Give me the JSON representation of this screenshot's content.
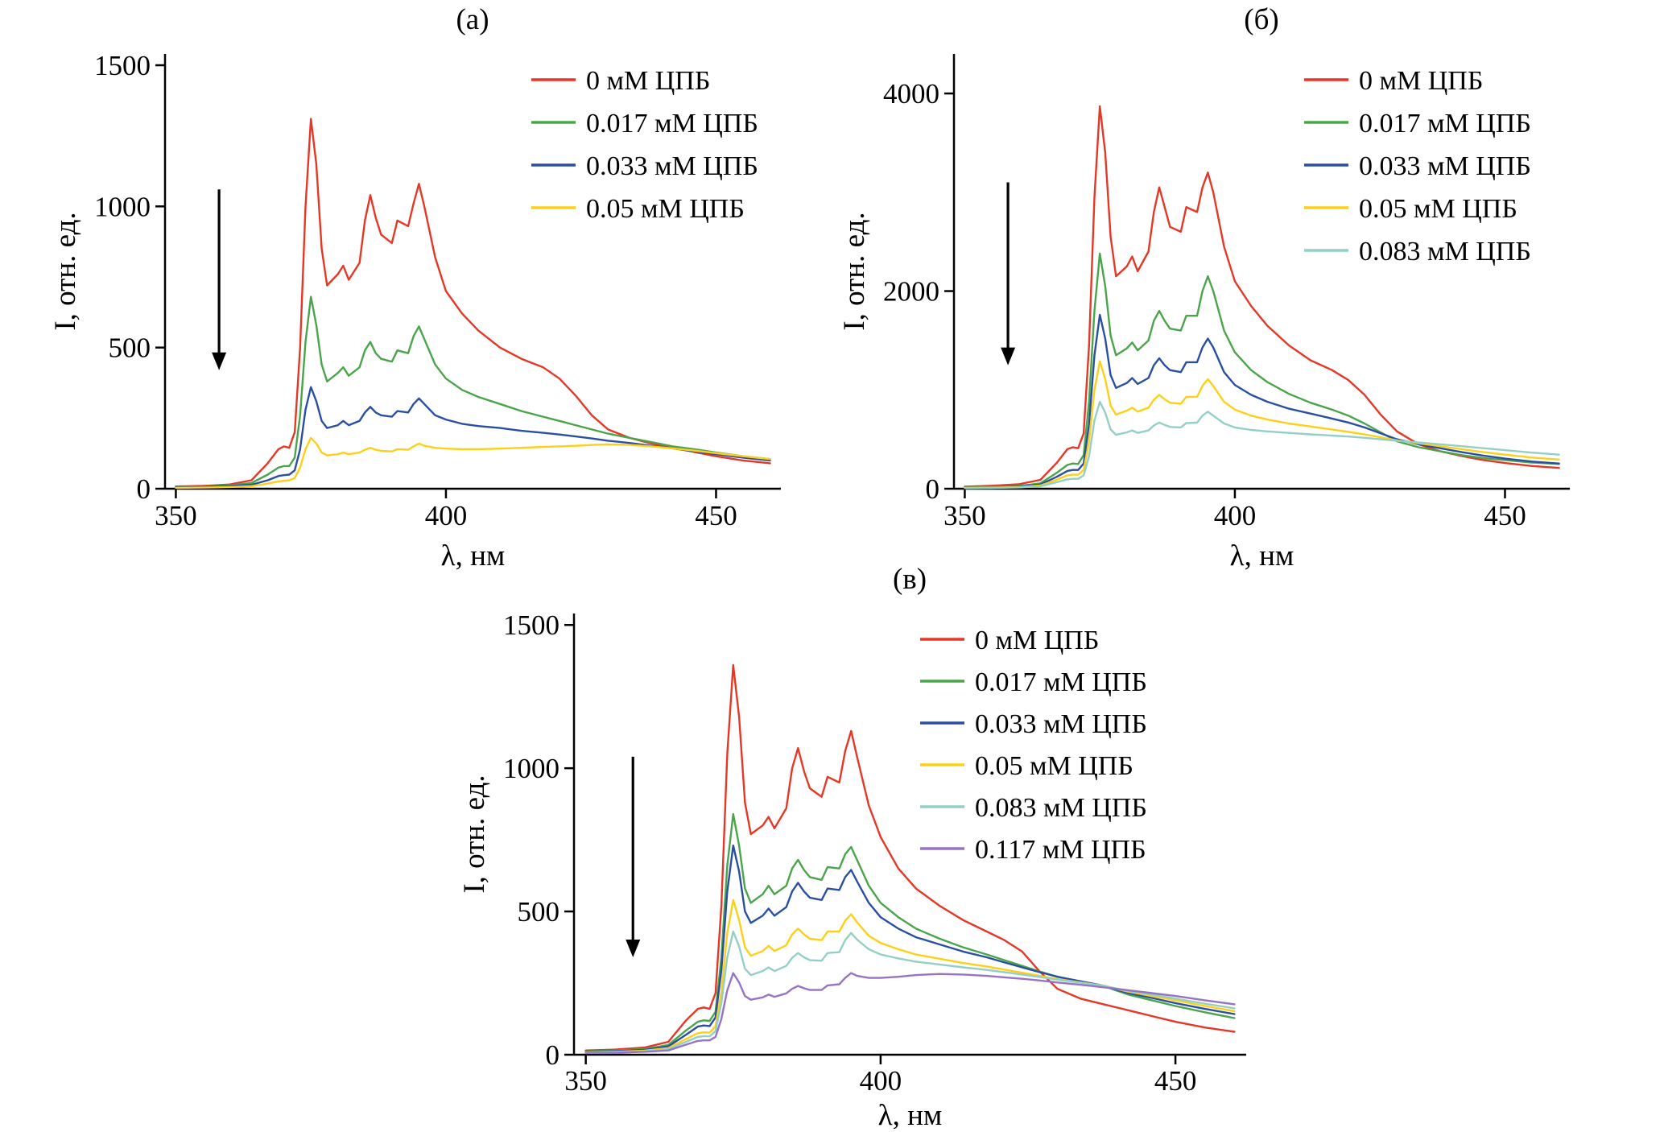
{
  "chart_data": [
    {
      "type": "line",
      "title": "(а)",
      "xlabel": "λ, нм",
      "ylabel": "I, отн. ед.",
      "xlim": [
        348,
        462
      ],
      "ylim": [
        0,
        1540
      ],
      "xticks": [
        350,
        400,
        450
      ],
      "yticks": [
        0,
        500,
        1000,
        1500
      ],
      "grid": false,
      "legend_position": "top-right",
      "arrow": {
        "x": 358,
        "y_from": 1060,
        "y_to": 420
      },
      "x": [
        350,
        355,
        360,
        364,
        367,
        369,
        370,
        371,
        372,
        373,
        374,
        375,
        376,
        377,
        378,
        380,
        381,
        382,
        384,
        385,
        386,
        387,
        388,
        390,
        391,
        393,
        394,
        395,
        396,
        398,
        400,
        403,
        406,
        410,
        414,
        418,
        421,
        424,
        427,
        430,
        434,
        438,
        442,
        446,
        450,
        455,
        460
      ],
      "series": [
        {
          "name": "0 мМ ЦПБ",
          "color": "#e63726",
          "values": [
            8,
            10,
            15,
            30,
            90,
            140,
            150,
            145,
            200,
            500,
            1000,
            1310,
            1150,
            850,
            720,
            760,
            790,
            740,
            800,
            950,
            1040,
            960,
            900,
            870,
            950,
            930,
            1010,
            1080,
            1000,
            820,
            700,
            620,
            560,
            500,
            460,
            430,
            390,
            330,
            260,
            210,
            180,
            160,
            145,
            130,
            115,
            100,
            90
          ]
        },
        {
          "name": "0.017 мМ ЦПБ",
          "color": "#4aa54a",
          "values": [
            5,
            8,
            12,
            20,
            50,
            75,
            80,
            80,
            110,
            260,
            520,
            680,
            580,
            440,
            380,
            410,
            430,
            400,
            430,
            490,
            520,
            480,
            460,
            450,
            490,
            480,
            540,
            575,
            530,
            440,
            390,
            350,
            325,
            300,
            275,
            255,
            240,
            225,
            210,
            195,
            180,
            165,
            150,
            140,
            128,
            115,
            105
          ]
        },
        {
          "name": "0.033 мМ ЦПБ",
          "color": "#2a4fa2",
          "values": [
            4,
            6,
            9,
            14,
            30,
            45,
            48,
            50,
            65,
            140,
            280,
            360,
            310,
            240,
            215,
            225,
            240,
            225,
            240,
            270,
            290,
            270,
            260,
            255,
            275,
            270,
            300,
            320,
            300,
            260,
            245,
            230,
            222,
            215,
            205,
            198,
            192,
            185,
            178,
            170,
            162,
            152,
            143,
            132,
            122,
            110,
            100
          ]
        },
        {
          "name": "0.05 мМ ЦПБ",
          "color": "#fdd017",
          "values": [
            3,
            4,
            6,
            9,
            18,
            26,
            28,
            30,
            38,
            75,
            140,
            180,
            160,
            128,
            118,
            122,
            128,
            122,
            128,
            138,
            145,
            138,
            134,
            132,
            140,
            138,
            150,
            160,
            152,
            145,
            142,
            140,
            140,
            142,
            145,
            148,
            150,
            152,
            155,
            157,
            155,
            150,
            143,
            135,
            126,
            115,
            105
          ]
        }
      ]
    },
    {
      "type": "line",
      "title": "(б)",
      "xlabel": "λ, нм",
      "ylabel": "I, отн. ед.",
      "xlim": [
        348,
        462
      ],
      "ylim": [
        0,
        4400
      ],
      "xticks": [
        350,
        400,
        450
      ],
      "yticks": [
        0,
        2000,
        4000
      ],
      "grid": false,
      "legend_position": "top-right",
      "arrow": {
        "x": 358,
        "y_from": 3100,
        "y_to": 1250
      },
      "x": [
        350,
        355,
        360,
        364,
        367,
        369,
        370,
        371,
        372,
        373,
        374,
        375,
        376,
        377,
        378,
        380,
        381,
        382,
        384,
        385,
        386,
        387,
        388,
        390,
        391,
        393,
        394,
        395,
        396,
        398,
        400,
        403,
        406,
        410,
        414,
        418,
        421,
        424,
        427,
        430,
        434,
        438,
        442,
        446,
        450,
        455,
        460
      ],
      "series": [
        {
          "name": "0 мМ ЦПБ",
          "color": "#e63726",
          "values": [
            20,
            30,
            45,
            90,
            260,
            400,
            420,
            410,
            560,
            1450,
            2950,
            3870,
            3400,
            2550,
            2150,
            2250,
            2350,
            2200,
            2400,
            2800,
            3050,
            2850,
            2650,
            2600,
            2850,
            2800,
            3050,
            3200,
            3000,
            2450,
            2100,
            1850,
            1650,
            1450,
            1300,
            1200,
            1100,
            950,
            750,
            580,
            450,
            380,
            330,
            290,
            260,
            230,
            210
          ]
        },
        {
          "name": "0.017 мМ ЦПБ",
          "color": "#4aa54a",
          "values": [
            12,
            18,
            28,
            55,
            160,
            240,
            255,
            250,
            340,
            880,
            1800,
            2380,
            2050,
            1550,
            1350,
            1420,
            1480,
            1400,
            1500,
            1700,
            1800,
            1700,
            1620,
            1600,
            1750,
            1750,
            2000,
            2150,
            2000,
            1600,
            1380,
            1200,
            1080,
            960,
            870,
            800,
            740,
            660,
            570,
            480,
            420,
            380,
            340,
            310,
            290,
            265,
            250
          ]
        },
        {
          "name": "0.033 мМ ЦПБ",
          "color": "#2a4fa2",
          "values": [
            10,
            14,
            22,
            42,
            120,
            180,
            190,
            190,
            255,
            650,
            1350,
            1760,
            1520,
            1150,
            1020,
            1070,
            1120,
            1060,
            1120,
            1250,
            1320,
            1250,
            1200,
            1180,
            1280,
            1280,
            1430,
            1520,
            1430,
            1180,
            1050,
            950,
            880,
            810,
            760,
            710,
            670,
            620,
            560,
            500,
            450,
            410,
            370,
            335,
            305,
            275,
            255
          ]
        },
        {
          "name": "0.05 мМ ЦПБ",
          "color": "#fdd017",
          "values": [
            8,
            11,
            17,
            32,
            90,
            135,
            142,
            142,
            190,
            480,
            1000,
            1290,
            1110,
            840,
            750,
            790,
            820,
            780,
            820,
            900,
            950,
            905,
            870,
            860,
            930,
            930,
            1040,
            1110,
            1040,
            880,
            800,
            740,
            700,
            660,
            630,
            600,
            575,
            550,
            520,
            490,
            460,
            430,
            400,
            370,
            345,
            315,
            295
          ]
        },
        {
          "name": "0.083 мМ ЦПБ",
          "color": "#94cfc6",
          "values": [
            6,
            8,
            13,
            24,
            65,
            95,
            100,
            100,
            135,
            330,
            690,
            880,
            770,
            600,
            545,
            570,
            590,
            565,
            590,
            640,
            670,
            645,
            625,
            620,
            665,
            668,
            740,
            780,
            740,
            660,
            620,
            595,
            580,
            565,
            550,
            538,
            528,
            515,
            500,
            485,
            468,
            450,
            430,
            410,
            390,
            365,
            345
          ]
        }
      ]
    },
    {
      "type": "line",
      "title": "(в)",
      "xlabel": "λ, нм",
      "ylabel": "I, отн. ед.",
      "xlim": [
        348,
        462
      ],
      "ylim": [
        0,
        1540
      ],
      "xticks": [
        350,
        400,
        450
      ],
      "yticks": [
        0,
        500,
        1000,
        1500
      ],
      "grid": false,
      "legend_position": "top-right",
      "arrow": {
        "x": 358,
        "y_from": 1040,
        "y_to": 340
      },
      "x": [
        350,
        355,
        360,
        364,
        367,
        369,
        370,
        371,
        372,
        373,
        374,
        375,
        376,
        377,
        378,
        380,
        381,
        382,
        384,
        385,
        386,
        387,
        388,
        390,
        391,
        393,
        394,
        395,
        396,
        398,
        400,
        403,
        406,
        410,
        414,
        418,
        421,
        424,
        427,
        430,
        434,
        438,
        442,
        446,
        450,
        455,
        460
      ],
      "series": [
        {
          "name": "0 мМ ЦПБ",
          "color": "#e63726",
          "values": [
            15,
            18,
            25,
            45,
            120,
            160,
            165,
            160,
            215,
            520,
            1050,
            1360,
            1180,
            880,
            770,
            800,
            830,
            790,
            860,
            1000,
            1070,
            990,
            930,
            900,
            970,
            950,
            1060,
            1130,
            1040,
            870,
            760,
            650,
            580,
            520,
            470,
            430,
            400,
            360,
            290,
            230,
            195,
            175,
            155,
            135,
            115,
            95,
            80
          ]
        },
        {
          "name": "0.017 мМ ЦПБ",
          "color": "#4aa54a",
          "values": [
            12,
            14,
            20,
            34,
            85,
            115,
            120,
            118,
            150,
            340,
            660,
            840,
            730,
            580,
            530,
            560,
            590,
            560,
            590,
            650,
            680,
            645,
            620,
            610,
            655,
            650,
            700,
            725,
            680,
            590,
            530,
            480,
            440,
            405,
            375,
            350,
            330,
            310,
            290,
            272,
            255,
            238,
            210,
            190,
            170,
            148,
            128
          ]
        },
        {
          "name": "0.033 мМ ЦПБ",
          "color": "#2a4fa2",
          "values": [
            10,
            12,
            17,
            29,
            70,
            98,
            102,
            100,
            130,
            295,
            570,
            730,
            640,
            500,
            460,
            485,
            510,
            485,
            515,
            570,
            600,
            570,
            548,
            540,
            580,
            575,
            620,
            645,
            605,
            530,
            480,
            440,
            410,
            385,
            360,
            340,
            322,
            305,
            288,
            272,
            256,
            240,
            215,
            198,
            180,
            160,
            142
          ]
        },
        {
          "name": "0.05 мМ ЦПБ",
          "color": "#fdd017",
          "values": [
            8,
            10,
            14,
            23,
            55,
            75,
            78,
            77,
            100,
            220,
            425,
            540,
            470,
            375,
            345,
            362,
            380,
            362,
            382,
            420,
            440,
            420,
            405,
            400,
            430,
            430,
            468,
            490,
            462,
            415,
            390,
            368,
            350,
            335,
            320,
            308,
            297,
            286,
            275,
            264,
            252,
            240,
            220,
            205,
            190,
            170,
            152
          ]
        },
        {
          "name": "0.083 мМ ЦПБ",
          "color": "#94cfc6",
          "values": [
            7,
            8,
            12,
            19,
            45,
            62,
            65,
            64,
            82,
            180,
            340,
            430,
            378,
            300,
            278,
            292,
            305,
            292,
            310,
            338,
            355,
            340,
            330,
            328,
            355,
            358,
            400,
            425,
            402,
            368,
            350,
            336,
            325,
            315,
            305,
            296,
            288,
            280,
            271,
            262,
            251,
            240,
            222,
            210,
            196,
            178,
            162
          ]
        },
        {
          "name": "0.117 мМ ЦПБ",
          "color": "#9673c5",
          "values": [
            6,
            7,
            10,
            15,
            35,
            48,
            50,
            50,
            62,
            125,
            225,
            285,
            252,
            205,
            192,
            200,
            210,
            202,
            214,
            230,
            240,
            232,
            226,
            226,
            242,
            246,
            268,
            285,
            275,
            268,
            268,
            272,
            278,
            282,
            280,
            275,
            270,
            265,
            259,
            252,
            244,
            235,
            225,
            215,
            205,
            190,
            176
          ]
        }
      ]
    }
  ]
}
